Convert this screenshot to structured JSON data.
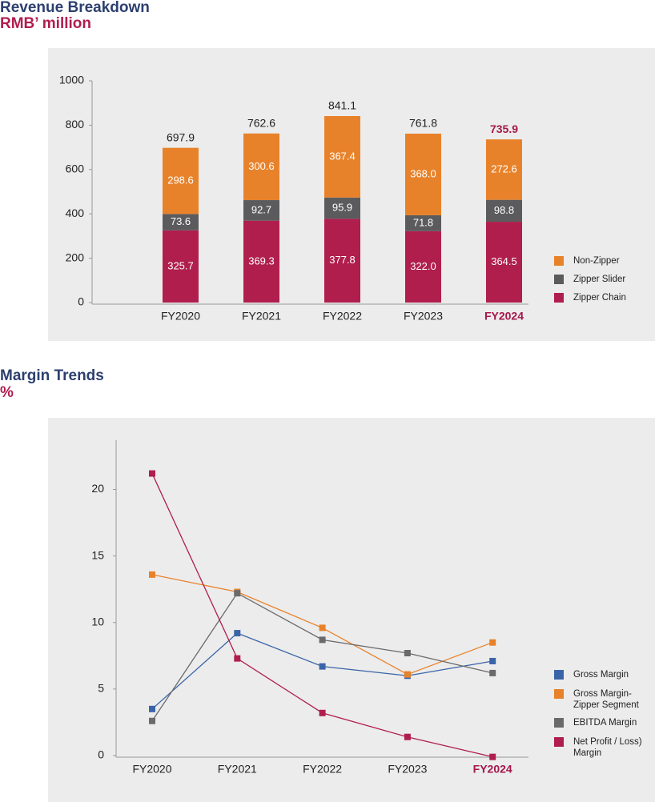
{
  "chart_data": [
    {
      "type": "stacked-bar",
      "title": "Revenue Breakdown",
      "subtitle": "RMB’ million",
      "categories": [
        "FY2020",
        "FY2021",
        "FY2022",
        "FY2023",
        "FY2024"
      ],
      "category_colors": [
        "#222222",
        "#222222",
        "#222222",
        "#222222",
        "#a3174a"
      ],
      "category_font_weights": [
        "normal",
        "normal",
        "normal",
        "normal",
        "bold"
      ],
      "series": [
        {
          "name": "Zipper Chain",
          "color": "#b01e4e",
          "values": [
            325.7,
            369.3,
            377.8,
            322.0,
            364.5
          ],
          "value_labels": [
            "325.7",
            "369.3",
            "377.8",
            "322.0",
            "364.5"
          ]
        },
        {
          "name": "Zipper Slider",
          "color": "#5b5b5d",
          "values": [
            73.6,
            92.7,
            95.9,
            71.8,
            98.8
          ]
        },
        {
          "name": "Non-Zipper",
          "color": "#e8822a",
          "values": [
            298.6,
            300.6,
            367.4,
            368.0,
            272.6
          ],
          "value_labels": [
            "298.6",
            "300.6",
            "367.4",
            "368.0",
            "272.6"
          ]
        }
      ],
      "totals": [
        697.9,
        762.6,
        841.1,
        761.8,
        735.9
      ],
      "ylim": [
        0,
        1000
      ],
      "yticks": [
        0,
        200,
        400,
        600,
        800,
        1000
      ]
    },
    {
      "type": "line",
      "title": "Margin Trends",
      "subtitle": "%",
      "categories": [
        "FY2020",
        "FY2021",
        "FY2022",
        "FY2023",
        "FY2024"
      ],
      "category_colors": [
        "#222222",
        "#222222",
        "#222222",
        "#222222",
        "#a3174a"
      ],
      "category_font_weights": [
        "normal",
        "normal",
        "normal",
        "normal",
        "bold"
      ],
      "series": [
        {
          "name": "Gross Margin",
          "color": "#3a64a8",
          "values": [
            3.5,
            9.2,
            6.7,
            6.0,
            7.1
          ]
        },
        {
          "name": "Gross Margin-Zipper Segment",
          "color": "#e8822a",
          "values": [
            13.6,
            12.3,
            9.6,
            6.1,
            8.5
          ]
        },
        {
          "name": "EBITDA Margin",
          "color": "#6a6a6c",
          "values": [
            2.6,
            12.2,
            8.7,
            7.7,
            6.2
          ]
        },
        {
          "name": "Net Profit / Loss) Margin",
          "color": "#b01e4e",
          "values": [
            21.2,
            7.3,
            3.2,
            1.4,
            -0.1
          ]
        }
      ],
      "ylim": [
        0,
        23.7
      ],
      "yticks": [
        0,
        5,
        10,
        15,
        20
      ]
    }
  ]
}
